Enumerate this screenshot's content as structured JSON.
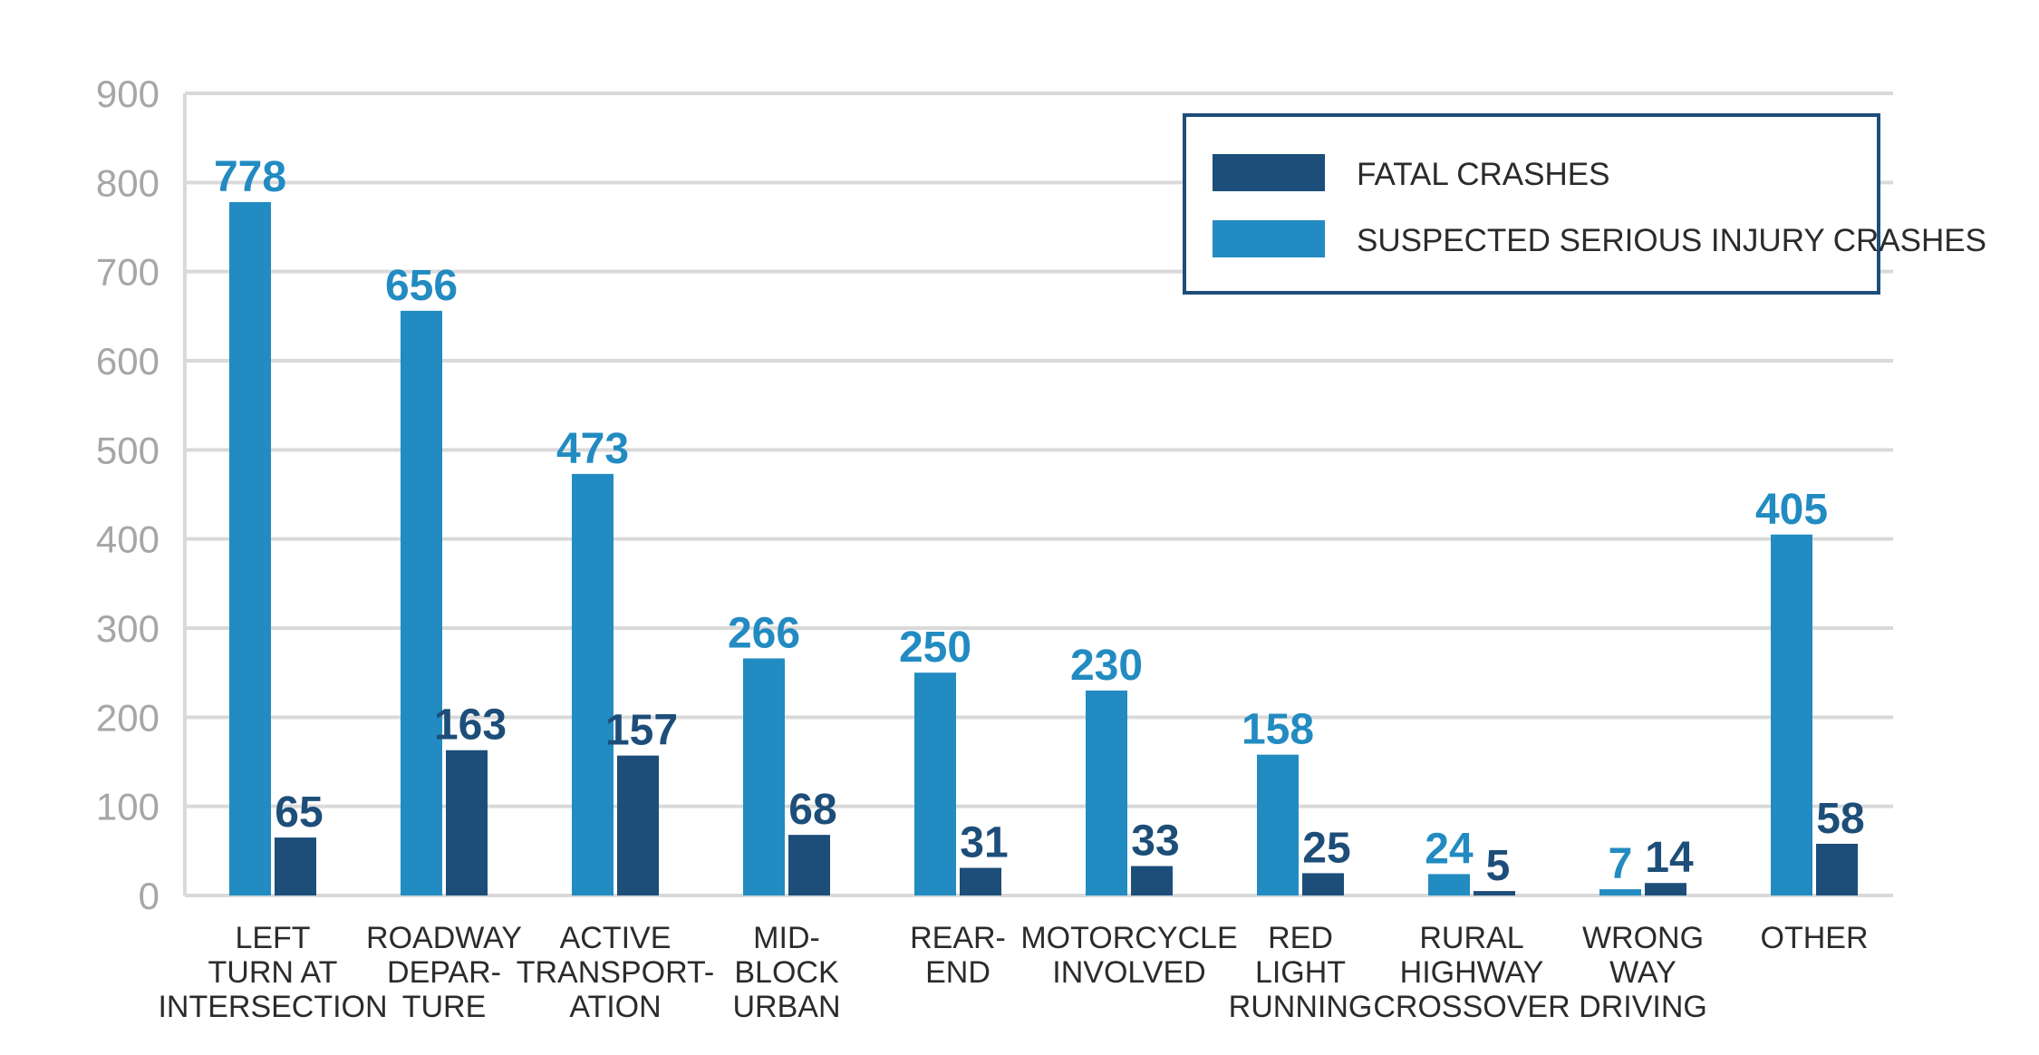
{
  "chart_data": {
    "type": "bar",
    "title": "",
    "xlabel": "",
    "ylabel": "",
    "ylim": [
      0,
      900
    ],
    "yticks": [
      0,
      100,
      200,
      300,
      400,
      500,
      600,
      700,
      800,
      900
    ],
    "grid": true,
    "legend_position": "top-right",
    "categories": [
      [
        "LEFT",
        "TURN AT",
        "INTERSECTION"
      ],
      [
        "ROADWAY",
        "DEPAR-",
        "TURE"
      ],
      [
        "ACTIVE",
        "TRANSPORT-",
        "ATION"
      ],
      [
        "MID-",
        "BLOCK",
        "URBAN"
      ],
      [
        "REAR-",
        "END"
      ],
      [
        "MOTORCYCLE",
        "INVOLVED"
      ],
      [
        "RED",
        "LIGHT",
        "RUNNING"
      ],
      [
        "RURAL",
        "HIGHWAY",
        "CROSSOVER"
      ],
      [
        "WRONG",
        "WAY",
        "DRIVING"
      ],
      [
        "OTHER"
      ]
    ],
    "series": [
      {
        "name": "SUSPECTED SERIOUS INJURY CRASHES",
        "color": "#228bc1",
        "values": [
          778,
          656,
          473,
          266,
          250,
          230,
          158,
          24,
          7,
          405
        ]
      },
      {
        "name": "FATAL CRASHES",
        "color": "#1d4e79",
        "values": [
          65,
          163,
          157,
          68,
          31,
          33,
          25,
          5,
          14,
          58
        ]
      }
    ],
    "legend_order": [
      "FATAL CRASHES",
      "SUSPECTED SERIOUS INJURY CRASHES"
    ]
  }
}
